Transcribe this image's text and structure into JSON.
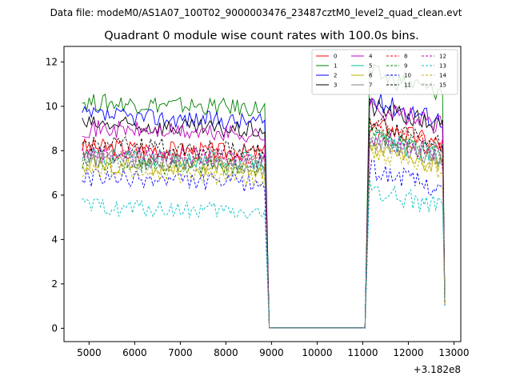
{
  "chart_data": {
    "type": "line",
    "suptitle": "Data file: modeM0/AS1A07_100T02_9000003476_23487cztM0_level2_quad_clean.evt",
    "title": "Quadrant 0 module wise count rates with 100.0s bins.",
    "xlabel": "",
    "ylabel": "",
    "x_offset_label": "+3.182e8",
    "xlim": [
      4450,
      13150
    ],
    "ylim": [
      -0.6,
      12.7
    ],
    "xticks": [
      5000,
      6000,
      7000,
      8000,
      9000,
      10000,
      11000,
      12000,
      13000
    ],
    "yticks": [
      0,
      2,
      4,
      6,
      8,
      10,
      12
    ],
    "gap": {
      "start": 8950,
      "end": 11050,
      "value": 0.02
    },
    "segment1": {
      "start": 4850,
      "end": 8850
    },
    "segment2": {
      "start": 11150,
      "end": 12750
    },
    "legend_position": "top-right",
    "series": [
      {
        "name": "0",
        "color": "#ff0000",
        "dash": "solid",
        "level1": 8.2,
        "level2": 9.2
      },
      {
        "name": "1",
        "color": "#008000",
        "dash": "solid",
        "level1": 10.2,
        "level2": 11.5
      },
      {
        "name": "2",
        "color": "#0000ff",
        "dash": "solid",
        "level1": 9.6,
        "level2": 10.3
      },
      {
        "name": "3",
        "color": "#000000",
        "dash": "solid",
        "level1": 9.2,
        "level2": 10.0
      },
      {
        "name": "4",
        "color": "#c000c0",
        "dash": "solid",
        "level1": 9.0,
        "level2": 10.0
      },
      {
        "name": "5",
        "color": "#00c0a0",
        "dash": "solid",
        "level1": 7.8,
        "level2": 8.6
      },
      {
        "name": "6",
        "color": "#c0b000",
        "dash": "solid",
        "level1": 7.4,
        "level2": 8.2
      },
      {
        "name": "7",
        "color": "#808080",
        "dash": "solid",
        "level1": 7.7,
        "level2": 8.5
      },
      {
        "name": "8",
        "color": "#ff0000",
        "dash": "dashed",
        "level1": 8.0,
        "level2": 9.0
      },
      {
        "name": "9",
        "color": "#008000",
        "dash": "dashed",
        "level1": 7.5,
        "level2": 8.8
      },
      {
        "name": "10",
        "color": "#0000ff",
        "dash": "dashed",
        "level1": 6.8,
        "level2": 7.2
      },
      {
        "name": "11",
        "color": "#000000",
        "dash": "dashed",
        "level1": 8.3,
        "level2": 9.3
      },
      {
        "name": "12",
        "color": "#c000c0",
        "dash": "dashed",
        "level1": 7.9,
        "level2": 8.7
      },
      {
        "name": "13",
        "color": "#00c0c0",
        "dash": "dashed",
        "level1": 5.5,
        "level2": 6.3
      },
      {
        "name": "14",
        "color": "#c0b000",
        "dash": "dashed",
        "level1": 7.1,
        "level2": 8.0
      },
      {
        "name": "15",
        "color": "#808080",
        "dash": "dashed",
        "level1": 7.6,
        "level2": 8.4
      }
    ]
  }
}
